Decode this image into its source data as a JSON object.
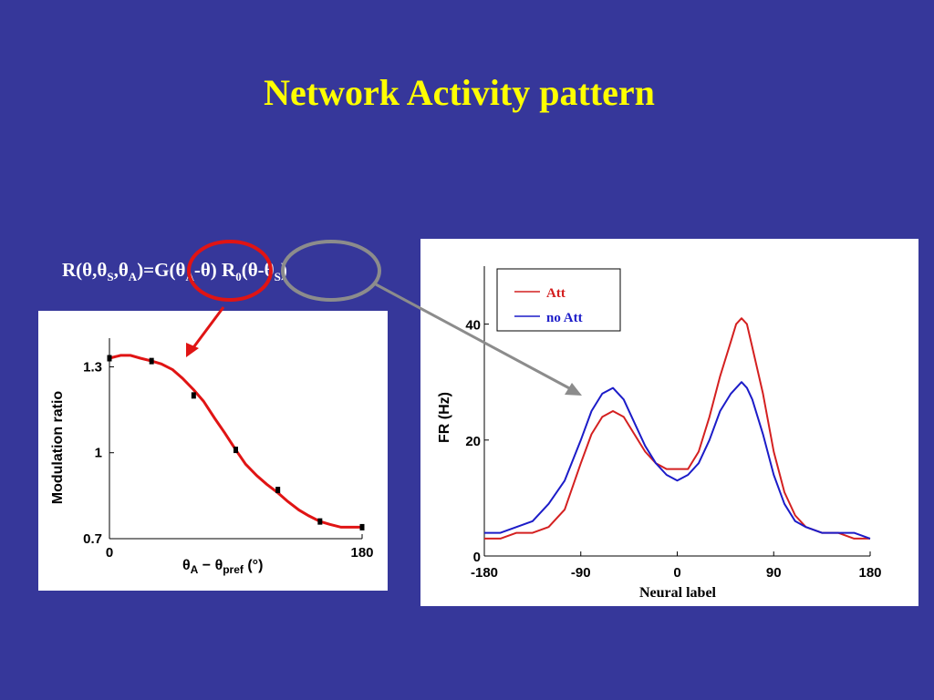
{
  "title": "Network Activity pattern",
  "formula": {
    "R": "R(θ,θ",
    "sub_s": "S",
    "comma": ",θ",
    "sub_a": "A",
    "eq": ")=G(θ",
    "sub_a2": "A",
    "mid": "-θ) R",
    "sub_0": "0",
    "tail": "(θ-θ",
    "sub_s2": "S",
    "close": ")"
  },
  "colors": {
    "background": "#36379a",
    "title": "#ffff00",
    "att": "#d42020",
    "no_att": "#1c1cc8",
    "circle_red": "#e01414",
    "circle_gray": "#8c8c8c",
    "arrow_gray": "#8c8c8c"
  },
  "chart_data": [
    {
      "type": "line",
      "ylabel": "Modulation ratio",
      "xlabel_parts": {
        "theta1": "θ",
        "sub1": "A",
        "minus": " − θ",
        "sub2": "pref",
        "unit": " (°)"
      },
      "xlim": [
        0,
        180
      ],
      "ylim": [
        0.7,
        1.4
      ],
      "xticks": [
        "0",
        "180"
      ],
      "yticks": [
        "1.3",
        "1",
        "0.7"
      ],
      "series": [
        {
          "color": "#e01414",
          "x": [
            0,
            8,
            15,
            22,
            30,
            37,
            45,
            52,
            60,
            67,
            75,
            82,
            90,
            97,
            105,
            112,
            120,
            127,
            135,
            142,
            150,
            157,
            165,
            172,
            180
          ],
          "y": [
            1.33,
            1.34,
            1.34,
            1.33,
            1.32,
            1.31,
            1.29,
            1.26,
            1.22,
            1.18,
            1.12,
            1.07,
            1.01,
            0.96,
            0.92,
            0.89,
            0.86,
            0.83,
            0.8,
            0.78,
            0.76,
            0.75,
            0.74,
            0.74,
            0.74
          ]
        }
      ],
      "markers": {
        "x": [
          0,
          30,
          60,
          90,
          120,
          150,
          180
        ],
        "y": [
          1.33,
          1.32,
          1.2,
          1.01,
          0.87,
          0.76,
          0.74
        ]
      }
    },
    {
      "type": "line",
      "ylabel": "FR (Hz)",
      "xlabel": "Neural label",
      "xlim": [
        -180,
        180
      ],
      "ylim": [
        0,
        50
      ],
      "xticks": [
        "-180",
        "-90",
        "0",
        "90",
        "180"
      ],
      "yticks": [
        "40",
        "20",
        "0"
      ],
      "legend": {
        "position": "top-left",
        "entries": [
          "Att",
          "no Att"
        ]
      },
      "series": [
        {
          "name": "Att",
          "color": "#d42020",
          "x": [
            -180,
            -165,
            -150,
            -135,
            -120,
            -105,
            -90,
            -80,
            -70,
            -60,
            -50,
            -40,
            -30,
            -20,
            -10,
            0,
            10,
            20,
            30,
            40,
            50,
            55,
            60,
            65,
            70,
            80,
            90,
            100,
            110,
            120,
            135,
            150,
            165,
            180
          ],
          "y": [
            3,
            3,
            4,
            4,
            5,
            8,
            16,
            21,
            24,
            25,
            24,
            21,
            18,
            16,
            15,
            15,
            15,
            18,
            24,
            31,
            37,
            40,
            41,
            40,
            36,
            28,
            18,
            11,
            7,
            5,
            4,
            4,
            3,
            3
          ]
        },
        {
          "name": "no Att",
          "color": "#1c1cc8",
          "x": [
            -180,
            -165,
            -150,
            -135,
            -120,
            -105,
            -90,
            -80,
            -70,
            -60,
            -50,
            -40,
            -30,
            -20,
            -10,
            0,
            10,
            20,
            30,
            40,
            50,
            55,
            60,
            65,
            70,
            80,
            90,
            100,
            110,
            120,
            135,
            150,
            165,
            180
          ],
          "y": [
            4,
            4,
            5,
            6,
            9,
            13,
            20,
            25,
            28,
            29,
            27,
            23,
            19,
            16,
            14,
            13,
            14,
            16,
            20,
            25,
            28,
            29,
            30,
            29,
            27,
            21,
            14,
            9,
            6,
            5,
            4,
            4,
            4,
            3
          ]
        }
      ]
    }
  ]
}
